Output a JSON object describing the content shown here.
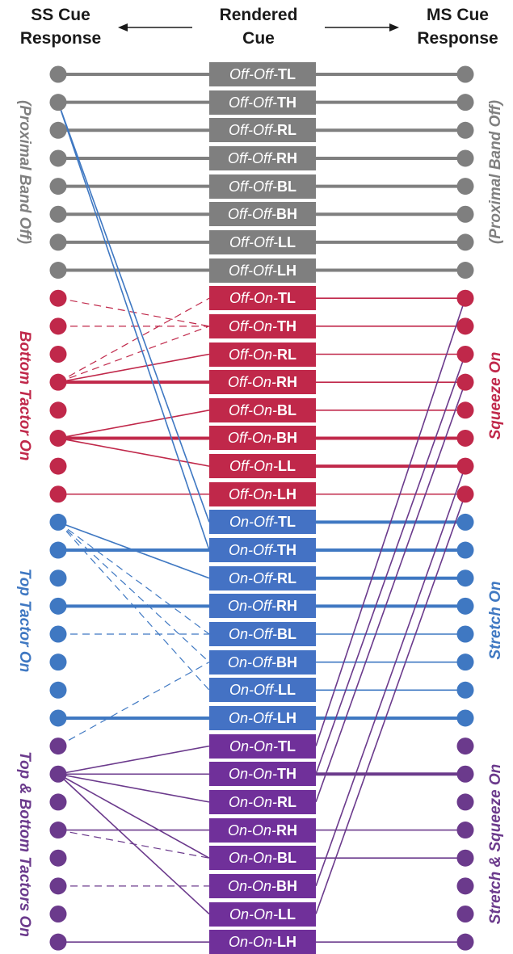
{
  "header": {
    "left_line1": "SS Cue",
    "left_line2": "Response",
    "middle_line1": "Rendered",
    "middle_line2": "Cue",
    "right_line1": "MS Cue",
    "right_line2": "Response"
  },
  "colors": {
    "gray": "#7f7f7f",
    "red": "#c0284a",
    "blue": "#3f78c2",
    "purple": "#6b3a8c",
    "gray_box": "#7f7f7f",
    "red_box": "#c0284a",
    "blue_box": "#4472c4",
    "purple_box": "#70309a"
  },
  "groups": [
    {
      "key": "gray",
      "left_label": "(Proximal Band Off)",
      "right_label": "(Proximal Band Off)"
    },
    {
      "key": "red",
      "left_label": "Bottom Tactor On",
      "right_label": "Squeeze On"
    },
    {
      "key": "blue",
      "left_label": "Top Tactor On",
      "right_label": "Stretch On"
    },
    {
      "key": "purple",
      "left_label": "Top & Bottom Tactors On",
      "right_label": "Stretch & Squeeze On"
    }
  ],
  "cues": [
    {
      "state": "Off-Off",
      "sep": "-",
      "loc": "TL",
      "group": "gray"
    },
    {
      "state": "Off-Off",
      "sep": "-",
      "loc": "TH",
      "group": "gray"
    },
    {
      "state": "Off-Off",
      "sep": "-",
      "loc": "RL",
      "group": "gray"
    },
    {
      "state": "Off-Off",
      "sep": "-",
      "loc": "RH",
      "group": "gray"
    },
    {
      "state": "Off-Off",
      "sep": "-",
      "loc": "BL",
      "group": "gray"
    },
    {
      "state": "Off-Off",
      "sep": "-",
      "loc": "BH",
      "group": "gray"
    },
    {
      "state": "Off-Off",
      "sep": "-",
      "loc": "LL",
      "group": "gray"
    },
    {
      "state": "Off-Off",
      "sep": "-",
      "loc": "LH",
      "group": "gray"
    },
    {
      "state": "Off-On",
      "sep": "-",
      "loc": "TL",
      "group": "red"
    },
    {
      "state": "Off-On",
      "sep": "-",
      "loc": "TH",
      "group": "red"
    },
    {
      "state": "Off-On",
      "sep": "-",
      "loc": "RL",
      "group": "red"
    },
    {
      "state": "Off-On",
      "sep": "-",
      "loc": "RH",
      "group": "red"
    },
    {
      "state": "Off-On",
      "sep": "-",
      "loc": "BL",
      "group": "red"
    },
    {
      "state": "Off-On",
      "sep": "-",
      "loc": "BH",
      "group": "red"
    },
    {
      "state": "Off-On",
      "sep": "-",
      "loc": "LL",
      "group": "red"
    },
    {
      "state": "Off-On",
      "sep": "-",
      "loc": "LH",
      "group": "red"
    },
    {
      "state": "On-Off",
      "sep": "-",
      "loc": "TL",
      "group": "blue"
    },
    {
      "state": "On-Off",
      "sep": "-",
      "loc": "TH",
      "group": "blue"
    },
    {
      "state": "On-Off",
      "sep": "-",
      "loc": "RL",
      "group": "blue"
    },
    {
      "state": "On-Off",
      "sep": "-",
      "loc": "RH",
      "group": "blue"
    },
    {
      "state": "On-Off",
      "sep": "-",
      "loc": "BL",
      "group": "blue"
    },
    {
      "state": "On-Off",
      "sep": "-",
      "loc": "BH",
      "group": "blue"
    },
    {
      "state": "On-Off",
      "sep": "-",
      "loc": "LL",
      "group": "blue"
    },
    {
      "state": "On-Off",
      "sep": "-",
      "loc": "LH",
      "group": "blue"
    },
    {
      "state": "On-On",
      "sep": "-",
      "loc": "TL",
      "group": "purple"
    },
    {
      "state": "On-On",
      "sep": "-",
      "loc": "TH",
      "group": "purple"
    },
    {
      "state": "On-On",
      "sep": "-",
      "loc": "RL",
      "group": "purple"
    },
    {
      "state": "On-On",
      "sep": "-",
      "loc": "RH",
      "group": "purple"
    },
    {
      "state": "On-On",
      "sep": "-",
      "loc": "BL",
      "group": "purple"
    },
    {
      "state": "On-On",
      "sep": "-",
      "loc": "BH",
      "group": "purple"
    },
    {
      "state": "On-On",
      "sep": "-",
      "loc": "LL",
      "group": "purple"
    },
    {
      "state": "On-On",
      "sep": "-",
      "loc": "LH",
      "group": "purple"
    }
  ],
  "ss_links": [
    {
      "cue": 0,
      "resp": 0,
      "style": "bold"
    },
    {
      "cue": 1,
      "resp": 1,
      "style": "bold"
    },
    {
      "cue": 2,
      "resp": 2,
      "style": "bold"
    },
    {
      "cue": 3,
      "resp": 3,
      "style": "bold"
    },
    {
      "cue": 4,
      "resp": 4,
      "style": "bold"
    },
    {
      "cue": 5,
      "resp": 5,
      "style": "bold"
    },
    {
      "cue": 6,
      "resp": 6,
      "style": "bold"
    },
    {
      "cue": 7,
      "resp": 7,
      "style": "bold"
    },
    {
      "cue": 8,
      "resp": 11,
      "style": "dashed"
    },
    {
      "cue": 9,
      "resp": 8,
      "style": "dashed"
    },
    {
      "cue": 9,
      "resp": 9,
      "style": "dashed"
    },
    {
      "cue": 9,
      "resp": 11,
      "style": "dashed"
    },
    {
      "cue": 10,
      "resp": 11,
      "style": "solid"
    },
    {
      "cue": 11,
      "resp": 11,
      "style": "bold"
    },
    {
      "cue": 12,
      "resp": 13,
      "style": "solid"
    },
    {
      "cue": 13,
      "resp": 13,
      "style": "bold"
    },
    {
      "cue": 14,
      "resp": 13,
      "style": "solid"
    },
    {
      "cue": 15,
      "resp": 15,
      "style": "solid"
    },
    {
      "cue": 16,
      "resp": 1,
      "style": "solid"
    },
    {
      "cue": 17,
      "resp": 1,
      "style": "solid"
    },
    {
      "cue": 17,
      "resp": 17,
      "style": "bold"
    },
    {
      "cue": 18,
      "resp": 16,
      "style": "solid"
    },
    {
      "cue": 19,
      "resp": 19,
      "style": "bold"
    },
    {
      "cue": 20,
      "resp": 16,
      "style": "dashed"
    },
    {
      "cue": 20,
      "resp": 20,
      "style": "dashed"
    },
    {
      "cue": 21,
      "resp": 16,
      "style": "dashed"
    },
    {
      "cue": 21,
      "resp": 24,
      "style": "dashed"
    },
    {
      "cue": 22,
      "resp": 16,
      "style": "dashed"
    },
    {
      "cue": 23,
      "resp": 23,
      "style": "bold"
    },
    {
      "cue": 24,
      "resp": 25,
      "style": "solid"
    },
    {
      "cue": 25,
      "resp": 25,
      "style": "solid"
    },
    {
      "cue": 26,
      "resp": 25,
      "style": "solid"
    },
    {
      "cue": 27,
      "resp": 27,
      "style": "solid"
    },
    {
      "cue": 28,
      "resp": 25,
      "style": "solid"
    },
    {
      "cue": 28,
      "resp": 27,
      "style": "dashed"
    },
    {
      "cue": 29,
      "resp": 29,
      "style": "dashed"
    },
    {
      "cue": 30,
      "resp": 25,
      "style": "solid"
    },
    {
      "cue": 31,
      "resp": 31,
      "style": "solid"
    }
  ],
  "ms_links": [
    {
      "cue": 0,
      "resp": 0,
      "style": "bold"
    },
    {
      "cue": 1,
      "resp": 1,
      "style": "bold"
    },
    {
      "cue": 2,
      "resp": 2,
      "style": "bold"
    },
    {
      "cue": 3,
      "resp": 3,
      "style": "bold"
    },
    {
      "cue": 4,
      "resp": 4,
      "style": "bold"
    },
    {
      "cue": 5,
      "resp": 5,
      "style": "bold"
    },
    {
      "cue": 6,
      "resp": 6,
      "style": "bold"
    },
    {
      "cue": 7,
      "resp": 7,
      "style": "bold"
    },
    {
      "cue": 8,
      "resp": 8,
      "style": "solid"
    },
    {
      "cue": 9,
      "resp": 9,
      "style": "solid"
    },
    {
      "cue": 10,
      "resp": 10,
      "style": "solid"
    },
    {
      "cue": 11,
      "resp": 11,
      "style": "solid"
    },
    {
      "cue": 12,
      "resp": 12,
      "style": "solid"
    },
    {
      "cue": 13,
      "resp": 13,
      "style": "bold"
    },
    {
      "cue": 14,
      "resp": 14,
      "style": "bold"
    },
    {
      "cue": 15,
      "resp": 15,
      "style": "solid"
    },
    {
      "cue": 16,
      "resp": 16,
      "style": "bold"
    },
    {
      "cue": 17,
      "resp": 17,
      "style": "bold"
    },
    {
      "cue": 18,
      "resp": 18,
      "style": "bold"
    },
    {
      "cue": 19,
      "resp": 19,
      "style": "bold"
    },
    {
      "cue": 20,
      "resp": 20,
      "style": "solid"
    },
    {
      "cue": 21,
      "resp": 21,
      "style": "solid"
    },
    {
      "cue": 22,
      "resp": 22,
      "style": "solid"
    },
    {
      "cue": 23,
      "resp": 23,
      "style": "bold"
    },
    {
      "cue": 24,
      "resp": 8,
      "style": "solid"
    },
    {
      "cue": 25,
      "resp": 25,
      "style": "bold"
    },
    {
      "cue": 25,
      "resp": 10,
      "style": "solid"
    },
    {
      "cue": 26,
      "resp": 11,
      "style": "solid"
    },
    {
      "cue": 27,
      "resp": 27,
      "style": "solid"
    },
    {
      "cue": 28,
      "resp": 28,
      "style": "solid"
    },
    {
      "cue": 29,
      "resp": 14,
      "style": "solid"
    },
    {
      "cue": 30,
      "resp": 15,
      "style": "solid"
    },
    {
      "cue": 31,
      "resp": 31,
      "style": "solid"
    }
  ]
}
